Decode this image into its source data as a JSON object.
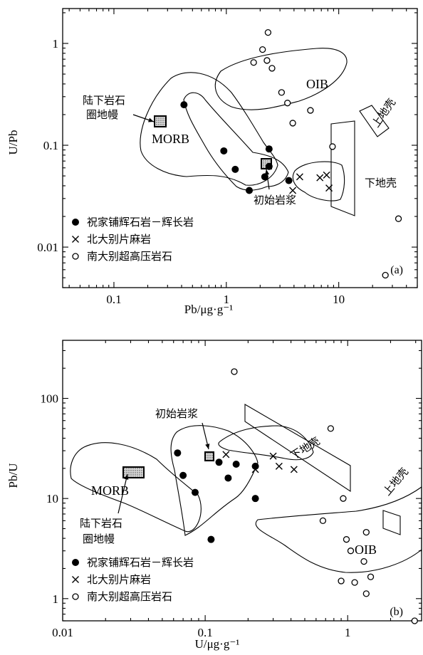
{
  "chart_data": [
    {
      "type": "scatter",
      "panel_label": "(a)",
      "xscale": "log",
      "yscale": "log",
      "xlim": [
        0.035,
        50
      ],
      "ylim": [
        0.004,
        2.2
      ],
      "xlabel": "Pb/μg·g⁻¹",
      "ylabel": "U/Pb",
      "xticks": [
        0.1,
        1,
        10
      ],
      "xtick_labels": [
        "0.1",
        "1",
        "10"
      ],
      "yticks": [
        0.01,
        0.1,
        1
      ],
      "ytick_labels": [
        "0.01",
        "0.1",
        "1"
      ],
      "legend": [
        {
          "marker": "filled-circle",
          "label": "祝家铺辉石岩－辉长岩"
        },
        {
          "marker": "cross",
          "label": "北大别片麻岩"
        },
        {
          "marker": "open-circle",
          "label": "南大别超高压岩石"
        }
      ],
      "series": [
        {
          "name": "祝家铺辉石岩－辉长岩",
          "marker": "filled-circle",
          "points": [
            [
              0.42,
              0.25
            ],
            [
              0.95,
              0.088
            ],
            [
              1.2,
              0.058
            ],
            [
              1.6,
              0.036
            ],
            [
              2.2,
              0.049
            ],
            [
              2.4,
              0.062
            ],
            [
              2.4,
              0.092
            ],
            [
              3.6,
              0.045
            ]
          ]
        },
        {
          "name": "北大别片麻岩",
          "marker": "cross",
          "points": [
            [
              3.9,
              0.036
            ],
            [
              4.5,
              0.049
            ],
            [
              6.8,
              0.048
            ],
            [
              7.8,
              0.051
            ],
            [
              8.2,
              0.038
            ]
          ]
        },
        {
          "name": "南大别超高压岩石",
          "marker": "open-circle",
          "points": [
            [
              1.75,
              0.65
            ],
            [
              2.1,
              0.87
            ],
            [
              2.3,
              0.68
            ],
            [
              2.35,
              1.28
            ],
            [
              2.55,
              0.57
            ],
            [
              3.1,
              0.33
            ],
            [
              3.5,
              0.26
            ],
            [
              3.9,
              0.165
            ],
            [
              5.6,
              0.22
            ],
            [
              8.8,
              0.097
            ],
            [
              26,
              0.0053
            ],
            [
              34,
              0.019
            ]
          ]
        }
      ],
      "fields": [
        {
          "label": "MORB"
        },
        {
          "label": "OIB"
        },
        {
          "label": "下地壳"
        },
        {
          "label": "上地壳"
        }
      ],
      "annotations": [
        "陆下岩石",
        "圈地幔",
        "初始岩浆"
      ]
    },
    {
      "type": "scatter",
      "panel_label": "(b)",
      "xscale": "log",
      "yscale": "log",
      "xlim": [
        0.01,
        3.3
      ],
      "ylim": [
        0.6,
        380
      ],
      "xlabel": "U/μg·g⁻¹",
      "ylabel": "Pb/U",
      "xticks": [
        0.01,
        0.1,
        1
      ],
      "xtick_labels": [
        "0.01",
        "0.1",
        "1"
      ],
      "yticks": [
        1,
        10,
        100
      ],
      "ytick_labels": [
        "1",
        "10",
        "100"
      ],
      "legend": [
        {
          "marker": "filled-circle",
          "label": "祝家铺辉石岩－辉长岩"
        },
        {
          "marker": "cross",
          "label": "北大别片麻岩"
        },
        {
          "marker": "open-circle",
          "label": "南大别超高压岩石"
        }
      ],
      "series": [
        {
          "name": "祝家铺辉石岩－辉长岩",
          "marker": "filled-circle",
          "points": [
            [
              0.064,
              28.5
            ],
            [
              0.07,
              17
            ],
            [
              0.085,
              11.5
            ],
            [
              0.11,
              3.9
            ],
            [
              0.125,
              23
            ],
            [
              0.145,
              16
            ],
            [
              0.165,
              22
            ],
            [
              0.225,
              21
            ],
            [
              0.225,
              10
            ]
          ]
        },
        {
          "name": "北大别片麻岩",
          "marker": "cross",
          "points": [
            [
              0.14,
              27.5
            ],
            [
              0.225,
              19.5
            ],
            [
              0.3,
              26.5
            ],
            [
              0.33,
              21
            ],
            [
              0.42,
              19.5
            ]
          ]
        },
        {
          "name": "南大别超高压岩石",
          "marker": "open-circle",
          "points": [
            [
              0.16,
              185
            ],
            [
              0.67,
              6
            ],
            [
              0.76,
              50
            ],
            [
              0.9,
              1.5
            ],
            [
              0.93,
              10
            ],
            [
              0.98,
              3.9
            ],
            [
              1.05,
              3
            ],
            [
              1.12,
              1.45
            ],
            [
              1.3,
              2.35
            ],
            [
              1.35,
              4.6
            ],
            [
              1.35,
              1.12
            ],
            [
              1.45,
              1.65
            ],
            [
              2.95,
              0.6
            ]
          ]
        }
      ],
      "fields": [
        {
          "label": "MORB"
        },
        {
          "label": "OIB"
        },
        {
          "label": "下地壳"
        },
        {
          "label": "上地壳"
        }
      ],
      "annotations": [
        "初始岩浆",
        "陆下岩石",
        "圈地幔"
      ]
    }
  ]
}
